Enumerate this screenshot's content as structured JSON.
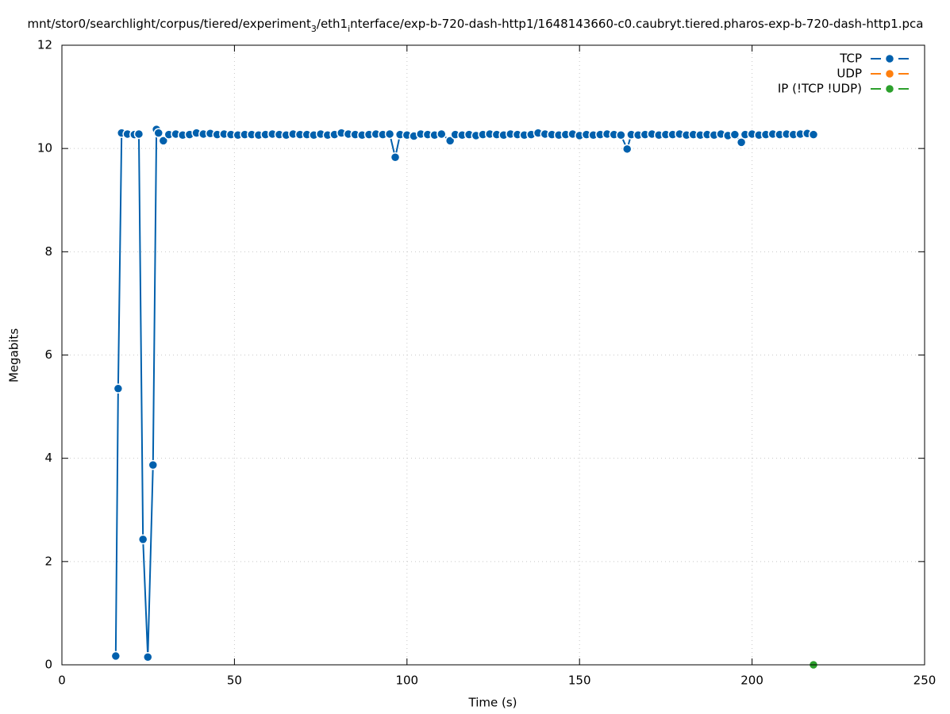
{
  "chart_data": {
    "type": "line",
    "title": [
      {
        "text": "mnt/stor0/searchlight/corpus/tiered/experiment"
      },
      {
        "text": "3",
        "sub": true
      },
      {
        "text": "/eth1"
      },
      {
        "text": "i",
        "sub": true
      },
      {
        "text": "nterface/exp-b-720-dash-http1/1648143660-c0.caubryt.tiered.pharos-exp-b-720-dash-http1.pca"
      }
    ],
    "x_label": "Time (s)",
    "y_label": "Megabits",
    "xlim": [
      0,
      250
    ],
    "xticks": [
      0,
      50,
      100,
      150,
      200,
      250
    ],
    "ylim": [
      0,
      12
    ],
    "yticks": [
      0,
      2,
      4,
      6,
      8,
      10,
      12
    ],
    "grid": true,
    "legend": "upper right",
    "series": [
      {
        "name": "TCP",
        "color": "#0060ad",
        "x": [
          15.6,
          16.3,
          17.3,
          19,
          21,
          22.3,
          23.5,
          24.9,
          26.4,
          27.4,
          28,
          29.4,
          31,
          33,
          35,
          37,
          39,
          41,
          43,
          45,
          47,
          49,
          51,
          53,
          55,
          57,
          59,
          61,
          63,
          65,
          67,
          69,
          71,
          73,
          75,
          77,
          79,
          81,
          83,
          85,
          87,
          89,
          91,
          93,
          95,
          96.6,
          98,
          100,
          102,
          104,
          106,
          108,
          110,
          112.5,
          114,
          116,
          118,
          120,
          122,
          124,
          126,
          128,
          130,
          132,
          134,
          136,
          138,
          140,
          142,
          144,
          146,
          148,
          150,
          152,
          154,
          156,
          158,
          160,
          162,
          163.8,
          165,
          167,
          169,
          171,
          173,
          175,
          177,
          179,
          181,
          183,
          185,
          187,
          189,
          191,
          193,
          195,
          196.9,
          198,
          200,
          202,
          204,
          206,
          208,
          210,
          212,
          214,
          216,
          217.8
        ],
        "values": [
          0.17,
          5.35,
          10.3,
          10.28,
          10.27,
          10.28,
          2.43,
          0.15,
          3.87,
          10.37,
          10.3,
          10.15,
          10.27,
          10.28,
          10.26,
          10.27,
          10.3,
          10.28,
          10.29,
          10.27,
          10.28,
          10.27,
          10.26,
          10.27,
          10.27,
          10.26,
          10.27,
          10.28,
          10.27,
          10.26,
          10.28,
          10.27,
          10.27,
          10.26,
          10.28,
          10.26,
          10.27,
          10.3,
          10.28,
          10.27,
          10.26,
          10.27,
          10.28,
          10.27,
          10.28,
          9.83,
          10.27,
          10.26,
          10.24,
          10.28,
          10.27,
          10.26,
          10.28,
          10.15,
          10.27,
          10.26,
          10.27,
          10.25,
          10.27,
          10.28,
          10.27,
          10.26,
          10.28,
          10.27,
          10.26,
          10.27,
          10.3,
          10.28,
          10.27,
          10.26,
          10.27,
          10.28,
          10.25,
          10.27,
          10.26,
          10.27,
          10.28,
          10.27,
          10.26,
          9.99,
          10.27,
          10.26,
          10.27,
          10.28,
          10.26,
          10.27,
          10.27,
          10.28,
          10.26,
          10.27,
          10.26,
          10.27,
          10.26,
          10.28,
          10.25,
          10.27,
          10.12,
          10.27,
          10.28,
          10.26,
          10.27,
          10.28,
          10.27,
          10.28,
          10.27,
          10.28,
          10.29,
          10.27
        ]
      },
      {
        "name": "UDP",
        "color": "#ff7f0e",
        "x": [],
        "values": []
      },
      {
        "name": "IP (!TCP  !UDP)",
        "color": "#2ca02c",
        "x": [
          217.8
        ],
        "values": [
          0
        ]
      }
    ]
  }
}
